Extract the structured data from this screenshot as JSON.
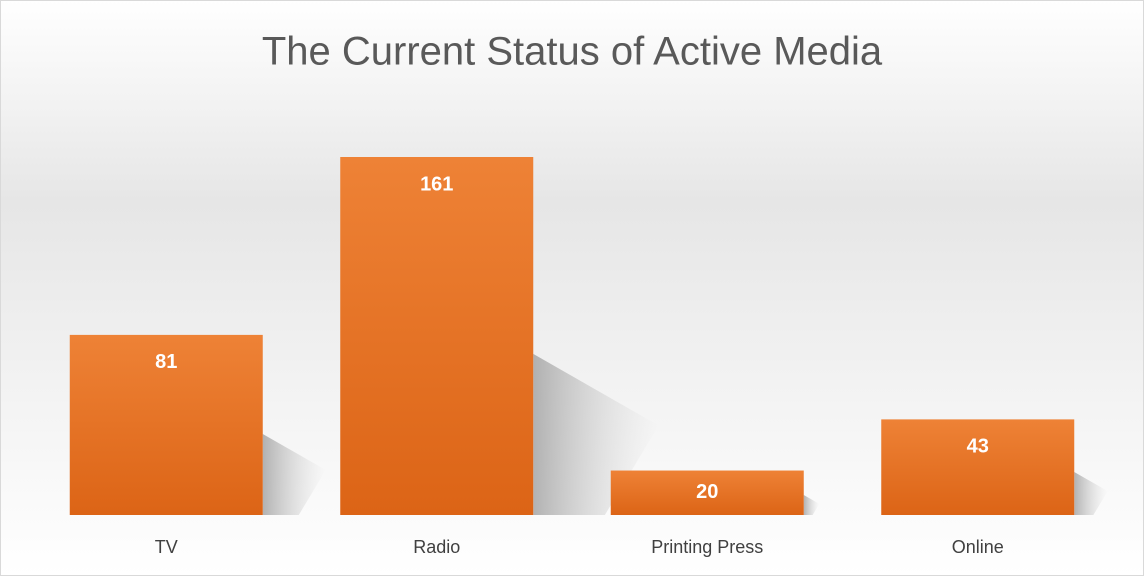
{
  "chart_data": {
    "type": "bar",
    "title": "The Current Status of Active Media",
    "categories": [
      "TV",
      "Radio",
      "Printing Press",
      "Online"
    ],
    "values": [
      81,
      161,
      20,
      43
    ],
    "color": "#ed7d31",
    "grid": false
  }
}
